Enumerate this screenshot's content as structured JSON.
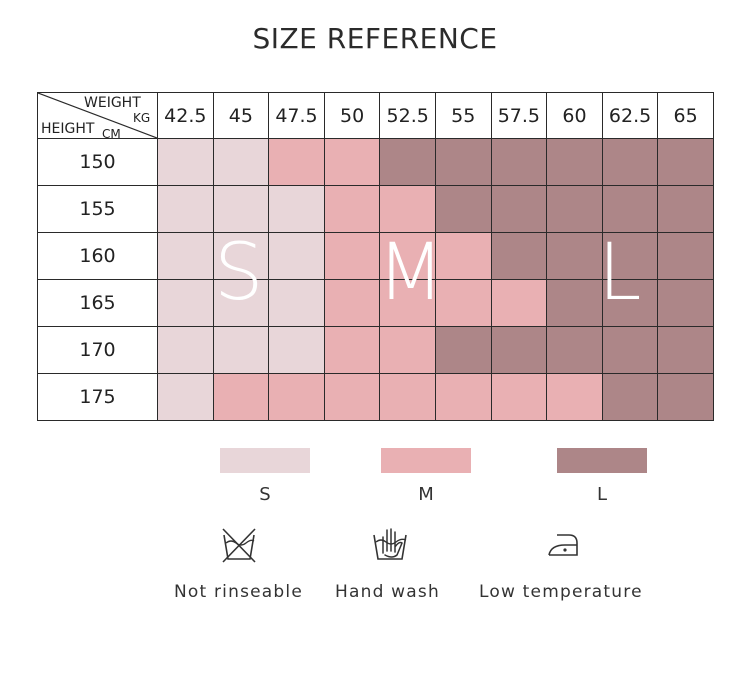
{
  "title": "SIZE REFERENCE",
  "corner": {
    "weight": "WEIGHT",
    "kg": "KG",
    "height": "HEIGHT",
    "cm": "CM"
  },
  "weights": [
    "42.5",
    "45",
    "47.5",
    "50",
    "52.5",
    "55",
    "57.5",
    "60",
    "62.5",
    "65"
  ],
  "colors": {
    "S": "#e8d6d9",
    "M": "#e9b0b3",
    "L": "#ad8688"
  },
  "rows": [
    {
      "height": "150",
      "sizes": [
        "S",
        "S",
        "M",
        "M",
        "L",
        "L",
        "L",
        "L",
        "L",
        "L"
      ]
    },
    {
      "height": "155",
      "sizes": [
        "S",
        "S",
        "S",
        "M",
        "M",
        "L",
        "L",
        "L",
        "L",
        "L"
      ]
    },
    {
      "height": "160",
      "sizes": [
        "S",
        "S",
        "S",
        "M",
        "M",
        "M",
        "L",
        "L",
        "L",
        "L"
      ]
    },
    {
      "height": "165",
      "sizes": [
        "S",
        "S",
        "S",
        "M",
        "M",
        "M",
        "M",
        "L",
        "L",
        "L"
      ]
    },
    {
      "height": "170",
      "sizes": [
        "S",
        "S",
        "S",
        "M",
        "M",
        "L",
        "L",
        "L",
        "L",
        "L"
      ]
    },
    {
      "height": "175",
      "sizes": [
        "S",
        "M",
        "M",
        "M",
        "M",
        "M",
        "M",
        "M",
        "L",
        "L"
      ]
    }
  ],
  "overlay_letters": [
    "S",
    "M",
    "L"
  ],
  "legend": [
    {
      "label": "S",
      "color": "#e8d6d9"
    },
    {
      "label": "M",
      "color": "#e9b0b3"
    },
    {
      "label": "L",
      "color": "#ad8688"
    }
  ],
  "care": [
    {
      "label": "Not rinseable",
      "icon": "crossed-wash-tub-icon"
    },
    {
      "label": "Hand wash",
      "icon": "hand-wash-icon"
    },
    {
      "label": "Low temperature",
      "icon": "iron-low-icon"
    }
  ]
}
